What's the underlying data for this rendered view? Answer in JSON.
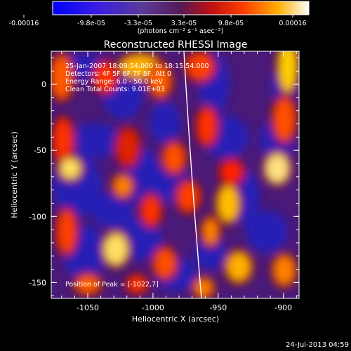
{
  "colorbar": {
    "tick_labels": [
      "-0.00016",
      "-9.8e-05",
      "-3.3e-05",
      "3.3e-05",
      "9.8e-05",
      "0.00016"
    ],
    "unit_label": "(photons cm⁻² s⁻¹ asec⁻²)"
  },
  "plot": {
    "title": "Reconstructed RHESSI Image",
    "xlabel": "Heliocentric X (arcsec)",
    "ylabel": "Heliocentric Y (arcsec)",
    "x_ticks": [
      "-1050",
      "-1000",
      "-950",
      "-900"
    ],
    "y_ticks": [
      "0",
      "-50",
      "-100",
      "-150"
    ],
    "xlim": [
      -1078,
      -888
    ],
    "ylim": [
      -162,
      25
    ],
    "info_lines": [
      "25-Jan-2007 18:09:54.000 to 18:15:54.000",
      "Detectors: 4F 5F 6F 7F 8F, Att 0",
      "Energy Range: 6.0 - 50.0 keV",
      "Clean    Total Counts: 9.01E+03"
    ],
    "peak_label": "Position of Peak = [-1022,7]",
    "limb_color": "#ffffff"
  },
  "footer": {
    "timestamp": "24-Jul-2013 04:59"
  },
  "colors": {
    "background": "#000000",
    "text": "#ffffff"
  }
}
